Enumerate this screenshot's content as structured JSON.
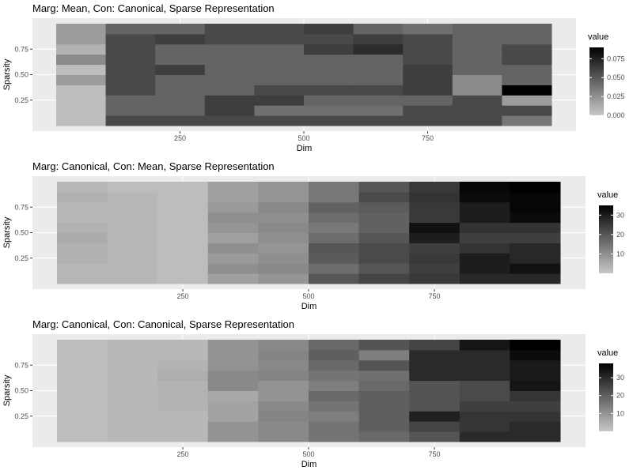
{
  "colors": {
    "panel_bg": "#ebebeb",
    "grid": "#ffffff",
    "low": "#c8c8c8",
    "high": "#000000"
  },
  "chart_data": [
    {
      "type": "heatmap",
      "title": "Marg: Mean,        Con: Canonical, Sparse Representation",
      "xlabel": "Dim",
      "ylabel": "Sparsity",
      "x_ticks": [
        250,
        500,
        750
      ],
      "y_ticks": [
        0.25,
        0.5,
        0.75
      ],
      "y_tick_labels": [
        "0.25",
        "0.50",
        "0.75"
      ],
      "x_centers": [
        50,
        150,
        250,
        350,
        450,
        550,
        650,
        750,
        850,
        950
      ],
      "y_centers": [
        0.05,
        0.15,
        0.25,
        0.35,
        0.45,
        0.55,
        0.65,
        0.75,
        0.85,
        0.95
      ],
      "xlim": [
        0,
        1000
      ],
      "ylim": [
        0,
        1
      ],
      "legend": {
        "title": "value",
        "position": "right",
        "ticks": [
          0.0,
          0.025,
          0.05,
          0.075
        ],
        "tick_labels": [
          "0.000",
          "0.025",
          "0.050",
          "0.075"
        ],
        "min": 0,
        "max": 0.09
      },
      "values": [
        [
          0.005,
          0.057,
          0.057,
          0.057,
          0.057,
          0.057,
          0.057,
          0.057,
          0.057,
          0.037
        ],
        [
          0.005,
          0.045,
          0.045,
          0.062,
          0.04,
          0.04,
          0.04,
          0.057,
          0.057,
          0.057
        ],
        [
          0.005,
          0.045,
          0.045,
          0.062,
          0.062,
          0.045,
          0.045,
          0.045,
          0.057,
          0.02
        ],
        [
          0.005,
          0.057,
          0.045,
          0.045,
          0.057,
          0.057,
          0.057,
          0.062,
          0.028,
          0.09
        ],
        [
          0.02,
          0.057,
          0.045,
          0.045,
          0.045,
          0.045,
          0.045,
          0.062,
          0.028,
          0.045
        ],
        [
          0.005,
          0.057,
          0.062,
          0.045,
          0.045,
          0.045,
          0.045,
          0.062,
          0.045,
          0.045
        ],
        [
          0.028,
          0.057,
          0.045,
          0.045,
          0.045,
          0.045,
          0.045,
          0.057,
          0.045,
          0.057
        ],
        [
          0.01,
          0.057,
          0.045,
          0.045,
          0.045,
          0.062,
          0.07,
          0.057,
          0.045,
          0.057
        ],
        [
          0.02,
          0.057,
          0.062,
          0.057,
          0.057,
          0.057,
          0.062,
          0.057,
          0.045,
          0.045
        ],
        [
          0.02,
          0.045,
          0.045,
          0.057,
          0.057,
          0.062,
          0.045,
          0.04,
          0.045,
          0.045
        ]
      ]
    },
    {
      "type": "heatmap",
      "title": "Marg: Canonical,   Con: Mean,       Sparse Representation",
      "xlabel": "Dim",
      "ylabel": "Sparsity",
      "x_ticks": [
        250,
        500,
        750
      ],
      "y_ticks": [
        0.25,
        0.5,
        0.75
      ],
      "y_tick_labels": [
        "0.25",
        "0.50",
        "0.75"
      ],
      "x_centers": [
        50,
        150,
        250,
        350,
        450,
        550,
        650,
        750,
        850,
        950
      ],
      "y_centers": [
        0.05,
        0.15,
        0.25,
        0.35,
        0.45,
        0.55,
        0.65,
        0.75,
        0.85,
        0.95
      ],
      "xlim": [
        0,
        1000
      ],
      "ylim": [
        0,
        1
      ],
      "legend": {
        "title": "value",
        "position": "right",
        "ticks": [
          10,
          20,
          30
        ],
        "tick_labels": [
          "10",
          "20",
          "30"
        ],
        "min": 0,
        "max": 35
      },
      "values": [
        [
          3,
          3,
          2,
          7,
          9,
          20,
          23,
          25,
          28,
          28
        ],
        [
          3,
          3,
          2,
          10,
          11,
          16,
          20,
          24,
          30,
          32
        ],
        [
          4,
          3,
          2,
          8,
          10,
          19,
          22,
          25,
          30,
          28
        ],
        [
          4,
          3,
          2,
          10,
          9,
          20,
          22,
          24,
          26,
          28
        ],
        [
          5,
          3,
          2,
          7,
          10,
          16,
          20,
          30,
          24,
          24
        ],
        [
          4,
          3,
          2,
          9,
          11,
          14,
          18,
          32,
          26,
          26
        ],
        [
          3,
          3,
          2,
          10,
          10,
          16,
          18,
          25,
          30,
          33
        ],
        [
          3,
          3,
          2,
          8,
          11,
          18,
          19,
          25,
          30,
          34
        ],
        [
          4,
          3,
          2,
          7,
          9,
          14,
          22,
          26,
          33,
          34
        ],
        [
          3,
          2,
          2,
          7,
          9,
          14,
          20,
          25,
          34,
          35
        ]
      ]
    },
    {
      "type": "heatmap",
      "title": "Marg: Canonical,   Con: Canonical, Sparse Representation",
      "xlabel": "Dim",
      "ylabel": "Sparsity",
      "x_ticks": [
        250,
        500,
        750
      ],
      "y_ticks": [
        0.25,
        0.5,
        0.75
      ],
      "y_tick_labels": [
        "0.25",
        "0.50",
        "0.75"
      ],
      "x_centers": [
        50,
        150,
        250,
        350,
        450,
        550,
        650,
        750,
        850,
        950
      ],
      "y_centers": [
        0.05,
        0.15,
        0.25,
        0.35,
        0.45,
        0.55,
        0.65,
        0.75,
        0.85,
        0.95
      ],
      "xlim": [
        0,
        1000
      ],
      "ylim": [
        0,
        1
      ],
      "legend": {
        "title": "value",
        "position": "right",
        "ticks": [
          10,
          20,
          30
        ],
        "tick_labels": [
          "10",
          "20",
          "30"
        ],
        "min": 0,
        "max": 38
      },
      "values": [
        [
          2,
          3,
          3,
          10,
          12,
          16,
          18,
          22,
          30,
          30
        ],
        [
          2,
          3,
          3,
          10,
          12,
          16,
          20,
          25,
          28,
          30
        ],
        [
          2,
          3,
          3,
          7,
          13,
          14,
          20,
          32,
          28,
          28
        ],
        [
          2,
          3,
          4,
          7,
          12,
          16,
          20,
          22,
          26,
          26
        ],
        [
          2,
          3,
          4,
          6,
          10,
          18,
          20,
          22,
          24,
          28
        ],
        [
          2,
          3,
          4,
          12,
          10,
          14,
          18,
          22,
          24,
          34
        ],
        [
          2,
          3,
          5,
          12,
          13,
          16,
          17,
          30,
          30,
          33
        ],
        [
          2,
          3,
          4,
          10,
          12,
          18,
          22,
          30,
          30,
          33
        ],
        [
          2,
          3,
          3,
          10,
          13,
          20,
          14,
          30,
          30,
          36
        ],
        [
          2,
          3,
          3,
          10,
          12,
          18,
          22,
          25,
          34,
          38
        ]
      ]
    }
  ]
}
